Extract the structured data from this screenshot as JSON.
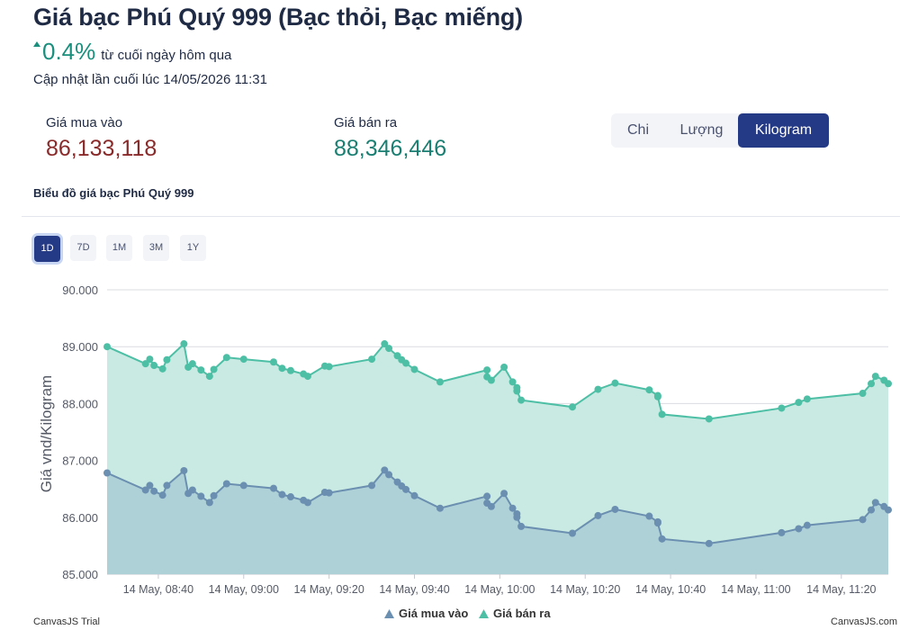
{
  "header": {
    "title": "Giá bạc Phú Quý 999 (Bạc thỏi, Bạc miếng)",
    "change_value": "0.4%",
    "change_label": "từ cuối ngày hôm qua",
    "change_direction": "up",
    "updated": "Cập nhật lần cuối lúc 14/05/2026 11:31"
  },
  "prices": {
    "buy_label": "Giá mua vào",
    "buy_value": "86,133,118",
    "sell_label": "Giá bán ra",
    "sell_value": "88,346,446"
  },
  "unit_tabs": [
    "Chi",
    "Lượng",
    "Kilogram"
  ],
  "unit_active": "Kilogram",
  "chart_title": "Biểu đồ giá bạc Phú Quý 999",
  "range_buttons": [
    "1D",
    "7D",
    "1M",
    "3M",
    "1Y"
  ],
  "range_active": "1D",
  "footer": {
    "left": "CanvasJS Trial",
    "right": "CanvasJS.com"
  },
  "colors": {
    "buy": "#6b8fb0",
    "sell": "#4dbfa5",
    "buy_fill": "#a9ccd6",
    "sell_fill": "#c8eae2",
    "accent": "#253a86",
    "up": "#1a8f7e"
  },
  "chart_data": {
    "type": "area",
    "ylabel": "Giá vnd/Kilogram",
    "ylim": [
      85000,
      90000
    ],
    "yticks": [
      "85.000",
      "86.000",
      "87.000",
      "88.000",
      "89.000",
      "90.000"
    ],
    "xlim": [
      "08:28",
      "11:31"
    ],
    "xticks": [
      "14 May, 08:40",
      "14 May, 09:00",
      "14 May, 09:20",
      "14 May, 09:40",
      "14 May, 10:00",
      "14 May, 10:20",
      "14 May, 10:40",
      "14 May, 11:00",
      "14 May, 11:20"
    ],
    "x": [
      "08:28",
      "08:37",
      "08:38",
      "08:39",
      "08:41",
      "08:42",
      "08:46",
      "08:47",
      "08:48",
      "08:50",
      "08:52",
      "08:53",
      "08:56",
      "09:00",
      "09:07",
      "09:09",
      "09:11",
      "09:14",
      "09:15",
      "09:19",
      "09:20",
      "09:30",
      "09:33",
      "09:34",
      "09:36",
      "09:37",
      "09:38",
      "09:40",
      "09:46",
      "09:57",
      "09:57",
      "09:58",
      "10:01",
      "10:03",
      "10:04",
      "10:04",
      "10:05",
      "10:17",
      "10:23",
      "10:27",
      "10:35",
      "10:37",
      "10:37",
      "10:38",
      "10:49",
      "11:06",
      "11:10",
      "11:12",
      "11:25",
      "11:27",
      "11:28",
      "11:30",
      "11:31"
    ],
    "series": [
      {
        "name": "Giá mua vào",
        "values": [
          86780,
          86480,
          86560,
          86460,
          86390,
          86560,
          86820,
          86420,
          86480,
          86370,
          86260,
          86380,
          86590,
          86560,
          86510,
          86400,
          86360,
          86300,
          86260,
          86440,
          86430,
          86560,
          86830,
          86750,
          86620,
          86550,
          86490,
          86380,
          86160,
          86370,
          86250,
          86190,
          86420,
          86160,
          86060,
          86000,
          85840,
          85720,
          86030,
          86140,
          86020,
          85920,
          85900,
          85620,
          85540,
          85730,
          85800,
          85860,
          85960,
          86130,
          86260,
          86190,
          86130
        ],
        "color": "#6b8fb0"
      },
      {
        "name": "Giá bán ra",
        "values": [
          89000,
          88700,
          88780,
          88670,
          88610,
          88770,
          89050,
          88640,
          88700,
          88590,
          88480,
          88600,
          88810,
          88780,
          88730,
          88620,
          88580,
          88520,
          88480,
          88660,
          88650,
          88780,
          89050,
          88970,
          88840,
          88770,
          88710,
          88600,
          88380,
          88590,
          88470,
          88410,
          88640,
          88380,
          88280,
          88220,
          88060,
          87940,
          88250,
          88360,
          88240,
          88140,
          88120,
          87810,
          87730,
          87920,
          88020,
          88080,
          88180,
          88350,
          88480,
          88410,
          88350
        ],
        "color": "#4dbfa5"
      }
    ],
    "legend": "bottom",
    "grid": true
  }
}
